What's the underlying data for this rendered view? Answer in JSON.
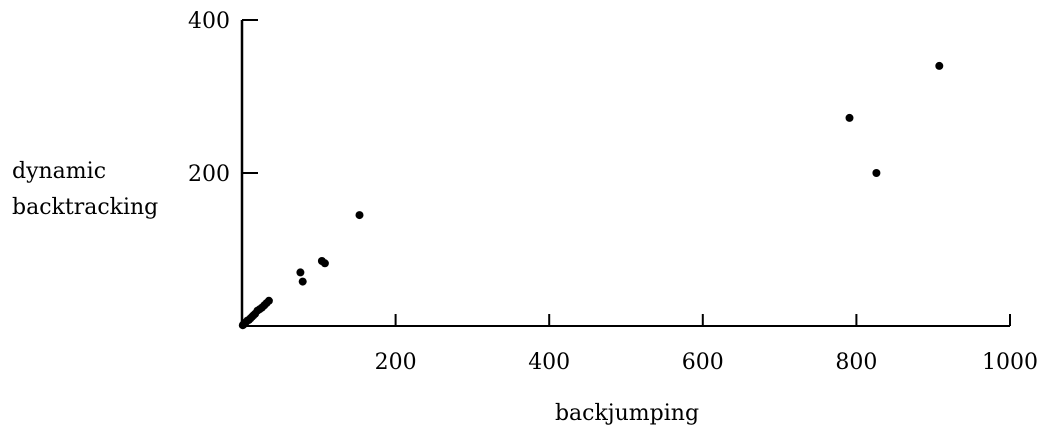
{
  "chart_data": {
    "type": "scatter",
    "title": "",
    "xlabel": "backjumping",
    "ylabel_lines": [
      "dynamic",
      "backtracking"
    ],
    "xlim": [
      0,
      1000
    ],
    "ylim": [
      0,
      400
    ],
    "xticks": [
      200,
      400,
      600,
      800,
      1000
    ],
    "yticks": [
      200,
      400
    ],
    "xtick_labels": [
      "200",
      "400",
      "600",
      "800",
      "1000"
    ],
    "ytick_labels": [
      "200",
      "400"
    ],
    "grid": false,
    "legend": "none",
    "marker_color": "#000000",
    "series": [
      {
        "points": [
          [
            1,
            1
          ],
          [
            2,
            2
          ],
          [
            3,
            3
          ],
          [
            5,
            5
          ],
          [
            7,
            7
          ],
          [
            9,
            8
          ],
          [
            11,
            10
          ],
          [
            13,
            12
          ],
          [
            15,
            14
          ],
          [
            17,
            16
          ],
          [
            20,
            20
          ],
          [
            23,
            22
          ],
          [
            26,
            24
          ],
          [
            29,
            27
          ],
          [
            32,
            30
          ],
          [
            35,
            33
          ],
          [
            76,
            70
          ],
          [
            79,
            58
          ],
          [
            104,
            85
          ],
          [
            108,
            82
          ],
          [
            153,
            145
          ],
          [
            791,
            272
          ],
          [
            826,
            200
          ],
          [
            908,
            340
          ]
        ]
      }
    ]
  }
}
